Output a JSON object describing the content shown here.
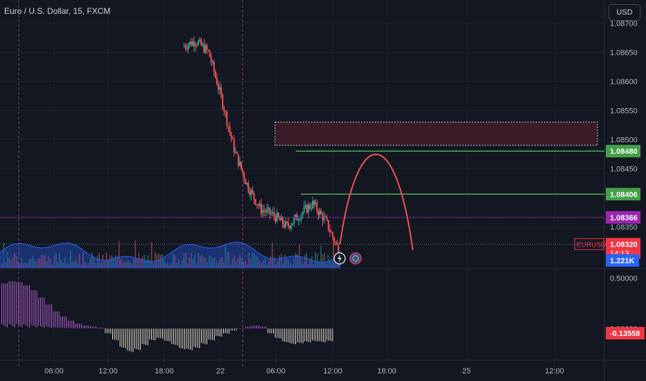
{
  "symbol_title": "Euro / U.S. Dollar, 15, FXCM",
  "currency_button": "USD",
  "colors": {
    "background": "#131722",
    "up": "#26a69a",
    "down": "#ef5350",
    "grid": "#1e222d",
    "axis_text": "#b2b5be",
    "zone": "#3a1b26",
    "green_line": "#4caf50",
    "purple_line": "#9c27b0",
    "price_tag": "#f23645",
    "histogram": "#b05fd0"
  },
  "chart_data": {
    "type": "candlestick",
    "timeframe": "15",
    "price_axis": {
      "ylim": [
        1.0828,
        1.0874
      ],
      "ticks": [
        "1.08700",
        "1.08650",
        "1.08600",
        "1.08550",
        "1.08500",
        "1.08450",
        "1.08350"
      ]
    },
    "time_axis": {
      "ticks": [
        "06:00",
        "12:00",
        "18:00",
        "22",
        "06:00",
        "12:00",
        "18:00",
        "25",
        "12:00"
      ]
    },
    "price_path": [
      [
        0.0,
        1.0876
      ],
      [
        0.5,
        1.0873
      ],
      [
        1.0,
        1.0868
      ],
      [
        1.5,
        1.0862
      ],
      [
        2.0,
        1.0858
      ],
      [
        2.5,
        1.0856
      ],
      [
        3.0,
        1.086
      ],
      [
        3.5,
        1.0863
      ],
      [
        4.0,
        1.086
      ],
      [
        4.5,
        1.0857
      ],
      [
        5.0,
        1.0858
      ],
      [
        5.5,
        1.0861
      ],
      [
        6.0,
        1.0862
      ],
      [
        6.5,
        1.0864
      ],
      [
        7.0,
        1.0866
      ],
      [
        7.5,
        1.0867
      ],
      [
        8.0,
        1.0865
      ],
      [
        8.5,
        1.0857
      ],
      [
        9.0,
        1.0848
      ],
      [
        9.5,
        1.0842
      ],
      [
        10.0,
        1.0838
      ],
      [
        10.5,
        1.0837
      ],
      [
        11.0,
        1.0835
      ],
      [
        11.5,
        1.0837
      ],
      [
        12.0,
        1.0839
      ],
      [
        12.5,
        1.0836
      ],
      [
        13.0,
        1.0831
      ]
    ],
    "price_levels": [
      {
        "label": "1.08480",
        "value": 1.0848,
        "color": "#4caf50"
      },
      {
        "label": "1.08406",
        "value": 1.08406,
        "color": "#4caf50"
      },
      {
        "label": "1.08366",
        "value": 1.08366,
        "color": "#9c27b0"
      },
      {
        "label": "EURUSD",
        "value": 1.0832,
        "color": "#f23645",
        "price": "1.08320",
        "countdown": "14:13"
      }
    ],
    "supply_zone": {
      "price_top": 1.0853,
      "price_bottom": 1.0849
    },
    "projection_curve": {
      "start_price": 1.0832,
      "peak_price": 1.0848,
      "end_price": 1.0831
    },
    "volume": {
      "label": "1.221K"
    },
    "oscillator": {
      "ticks": [
        "0.50000",
        "0.00000"
      ],
      "ylim": [
        -0.3,
        0.58
      ],
      "last_value": "-0.13558",
      "values": [
        0.45,
        0.47,
        0.46,
        0.43,
        0.38,
        0.31,
        0.24,
        0.17,
        0.12,
        0.08,
        0.05,
        0.03,
        0.02,
        0.01,
        -0.05,
        -0.12,
        -0.2,
        -0.24,
        -0.22,
        -0.17,
        -0.12,
        -0.1,
        -0.13,
        -0.17,
        -0.21,
        -0.22,
        -0.2,
        -0.16,
        -0.12,
        -0.08,
        -0.05,
        -0.02,
        0.0,
        0.02,
        0.03,
        0.02,
        -0.05,
        -0.1,
        -0.14,
        -0.16,
        -0.15,
        -0.14,
        -0.13,
        -0.14,
        -0.13
      ]
    }
  }
}
